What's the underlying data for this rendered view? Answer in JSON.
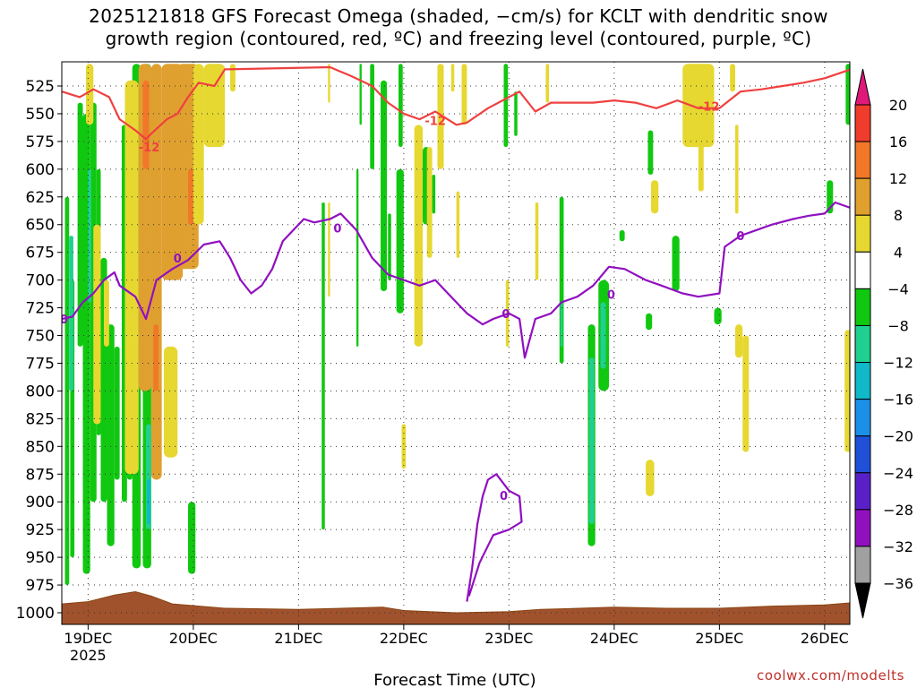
{
  "title": {
    "line1": "2025121818 GFS Forecast Omega (shaded, −cm/s) for KCLT with dendritic snow",
    "line2": "growth region (contoured, red, ºC) and freezing level (contoured, purple, ºC)"
  },
  "credit": "coolwx.com/modelts",
  "chart_data": {
    "type": "heatmap",
    "xlabel": "Forecast Time (UTC)",
    "ylabel": "",
    "x_ticks": [
      "19DEC",
      "20DEC",
      "21DEC",
      "22DEC",
      "23DEC",
      "24DEC",
      "25DEC",
      "26DEC"
    ],
    "x_year_label": "2025",
    "x_range_days": [
      18.75,
      26.25
    ],
    "y_ticks": [
      525,
      550,
      575,
      600,
      625,
      650,
      675,
      700,
      725,
      750,
      775,
      800,
      825,
      850,
      875,
      900,
      925,
      950,
      975,
      1000
    ],
    "y_range_hpa": [
      1012,
      505
    ],
    "grid": true,
    "colorbar": {
      "labels": [
        "20",
        "16",
        "12",
        "8",
        "4",
        "−4",
        "−8",
        "−12",
        "−16",
        "−20",
        "−24",
        "−28",
        "−32",
        "−36"
      ],
      "colors": [
        "#e0187a",
        "#f03c2c",
        "#f07828",
        "#e0a030",
        "#e6d830",
        "#ffffff",
        "#10c810",
        "#20d090",
        "#10b8c8",
        "#1c90e8",
        "#2050d8",
        "#5a20c8",
        "#9010c0",
        "#a0a0a0",
        "#000000"
      ]
    },
    "contour_labels": {
      "dgz": "-12",
      "freezing": "0"
    },
    "dgz_minus12_contour": [
      [
        18.75,
        530
      ],
      [
        18.92,
        535
      ],
      [
        19.05,
        528
      ],
      [
        19.2,
        535
      ],
      [
        19.3,
        555
      ],
      [
        19.45,
        565
      ],
      [
        19.55,
        573
      ],
      [
        19.6,
        568
      ],
      [
        19.75,
        555
      ],
      [
        19.85,
        550
      ],
      [
        19.95,
        535
      ],
      [
        20.05,
        522
      ],
      [
        20.2,
        525
      ],
      [
        20.3,
        510
      ],
      [
        21.3,
        508
      ],
      [
        21.5,
        516
      ],
      [
        21.7,
        525
      ],
      [
        21.85,
        540
      ],
      [
        22.0,
        550
      ],
      [
        22.15,
        555
      ],
      [
        22.3,
        548
      ],
      [
        22.5,
        560
      ],
      [
        22.6,
        558
      ],
      [
        22.8,
        545
      ],
      [
        23.0,
        535
      ],
      [
        23.1,
        530
      ],
      [
        23.25,
        548
      ],
      [
        23.4,
        540
      ],
      [
        23.6,
        540
      ],
      [
        23.8,
        540
      ],
      [
        24.0,
        538
      ],
      [
        24.2,
        540
      ],
      [
        24.4,
        545
      ],
      [
        24.6,
        538
      ],
      [
        24.8,
        545
      ],
      [
        25.0,
        545
      ],
      [
        25.2,
        530
      ],
      [
        25.4,
        528
      ],
      [
        25.6,
        525
      ],
      [
        25.8,
        522
      ],
      [
        26.0,
        518
      ],
      [
        26.25,
        510
      ]
    ],
    "freezing_0_contour": [
      [
        18.75,
        735
      ],
      [
        18.85,
        733
      ],
      [
        18.95,
        720
      ],
      [
        19.05,
        712
      ],
      [
        19.15,
        700
      ],
      [
        19.25,
        693
      ],
      [
        19.3,
        705
      ],
      [
        19.45,
        715
      ],
      [
        19.55,
        735
      ],
      [
        19.65,
        700
      ],
      [
        19.8,
        690
      ],
      [
        19.95,
        682
      ],
      [
        20.1,
        668
      ],
      [
        20.25,
        665
      ],
      [
        20.35,
        680
      ],
      [
        20.45,
        700
      ],
      [
        20.55,
        712
      ],
      [
        20.65,
        705
      ],
      [
        20.75,
        690
      ],
      [
        20.85,
        665
      ],
      [
        20.95,
        655
      ],
      [
        21.05,
        645
      ],
      [
        21.15,
        648
      ],
      [
        21.3,
        645
      ],
      [
        21.4,
        640
      ],
      [
        21.55,
        655
      ],
      [
        21.7,
        680
      ],
      [
        21.85,
        695
      ],
      [
        22.0,
        700
      ],
      [
        22.15,
        705
      ],
      [
        22.3,
        700
      ],
      [
        22.45,
        715
      ],
      [
        22.6,
        730
      ],
      [
        22.75,
        740
      ],
      [
        22.85,
        735
      ],
      [
        23.0,
        730
      ],
      [
        23.1,
        735
      ],
      [
        23.15,
        770
      ],
      [
        23.25,
        735
      ],
      [
        23.4,
        730
      ],
      [
        23.5,
        720
      ],
      [
        23.65,
        715
      ],
      [
        23.8,
        705
      ],
      [
        23.95,
        688
      ],
      [
        24.1,
        690
      ],
      [
        24.3,
        700
      ],
      [
        24.45,
        705
      ],
      [
        24.65,
        712
      ],
      [
        24.8,
        715
      ],
      [
        25.0,
        712
      ],
      [
        25.05,
        670
      ],
      [
        25.2,
        660
      ],
      [
        25.35,
        655
      ],
      [
        25.5,
        650
      ],
      [
        25.7,
        645
      ],
      [
        25.85,
        642
      ],
      [
        26.0,
        640
      ],
      [
        26.1,
        630
      ],
      [
        26.25,
        635
      ]
    ],
    "freezing_0_low_contour": [
      [
        22.6,
        990
      ],
      [
        22.65,
        960
      ],
      [
        22.7,
        920
      ],
      [
        22.75,
        895
      ],
      [
        22.8,
        880
      ],
      [
        22.88,
        875
      ],
      [
        23.0,
        890
      ],
      [
        23.1,
        895
      ],
      [
        23.12,
        918
      ],
      [
        23.0,
        925
      ],
      [
        22.85,
        930
      ],
      [
        22.72,
        955
      ],
      [
        22.62,
        985
      ]
    ]
  }
}
